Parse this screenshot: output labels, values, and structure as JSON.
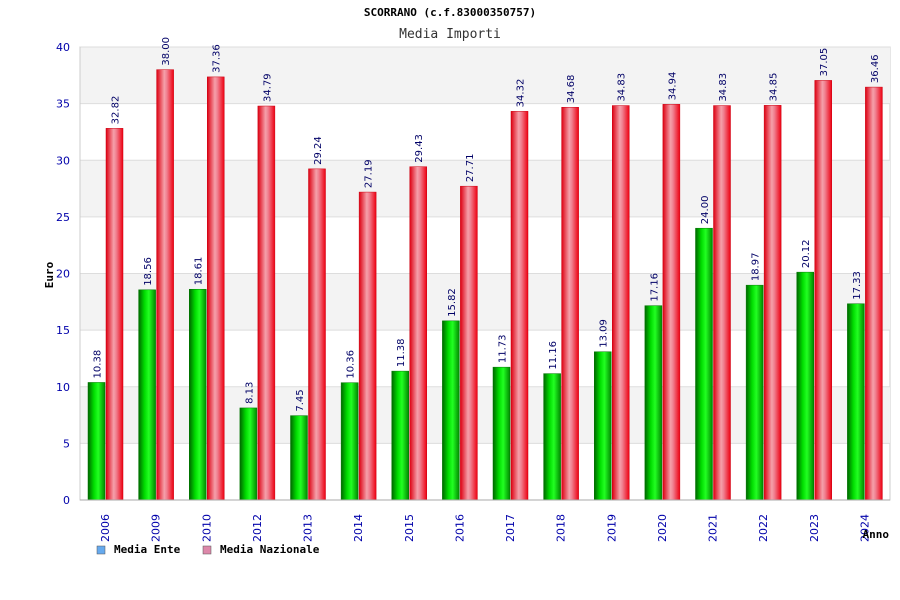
{
  "chart_data": {
    "type": "bar",
    "title": "SCORRANO (c.f.83000350757)",
    "subtitle": "Media Importi",
    "xlabel": "Anno",
    "ylabel": "Euro",
    "ylim": [
      0,
      40
    ],
    "yticks": [
      0,
      5,
      10,
      15,
      20,
      25,
      30,
      35,
      40
    ],
    "grid": true,
    "legend_position": "bottom-left",
    "categories": [
      "2006",
      "2009",
      "2010",
      "2012",
      "2013",
      "2014",
      "2015",
      "2016",
      "2017",
      "2018",
      "2019",
      "2020",
      "2021",
      "2022",
      "2023",
      "2024"
    ],
    "series": [
      {
        "name": "Media Ente",
        "color": "#00cc00",
        "legend_color": "#66aaee",
        "values": [
          10.38,
          18.56,
          18.61,
          8.13,
          7.45,
          10.36,
          11.38,
          15.82,
          11.73,
          11.16,
          13.09,
          17.16,
          24.0,
          18.97,
          20.12,
          17.33
        ],
        "labels": [
          "10.38",
          "18.56",
          "18.61",
          "8.13",
          "7.45",
          "10.36",
          "11.38",
          "15.82",
          "11.73",
          "11.16",
          "13.09",
          "17.16",
          "24.00",
          "18.97",
          "20.12",
          "17.33"
        ]
      },
      {
        "name": "Media Nazionale",
        "color": "#ee1122",
        "legend_color": "#dd88aa",
        "values": [
          32.82,
          38.0,
          37.36,
          34.79,
          29.24,
          27.19,
          29.43,
          27.71,
          34.32,
          34.68,
          34.83,
          34.94,
          34.83,
          34.85,
          37.05,
          36.46
        ],
        "labels": [
          "32.82",
          "38.00",
          "37.36",
          "34.79",
          "29.24",
          "27.19",
          "29.43",
          "27.71",
          "34.32",
          "34.68",
          "34.83",
          "34.94",
          "34.83",
          "34.85",
          "37.05",
          "36.46"
        ]
      }
    ]
  }
}
